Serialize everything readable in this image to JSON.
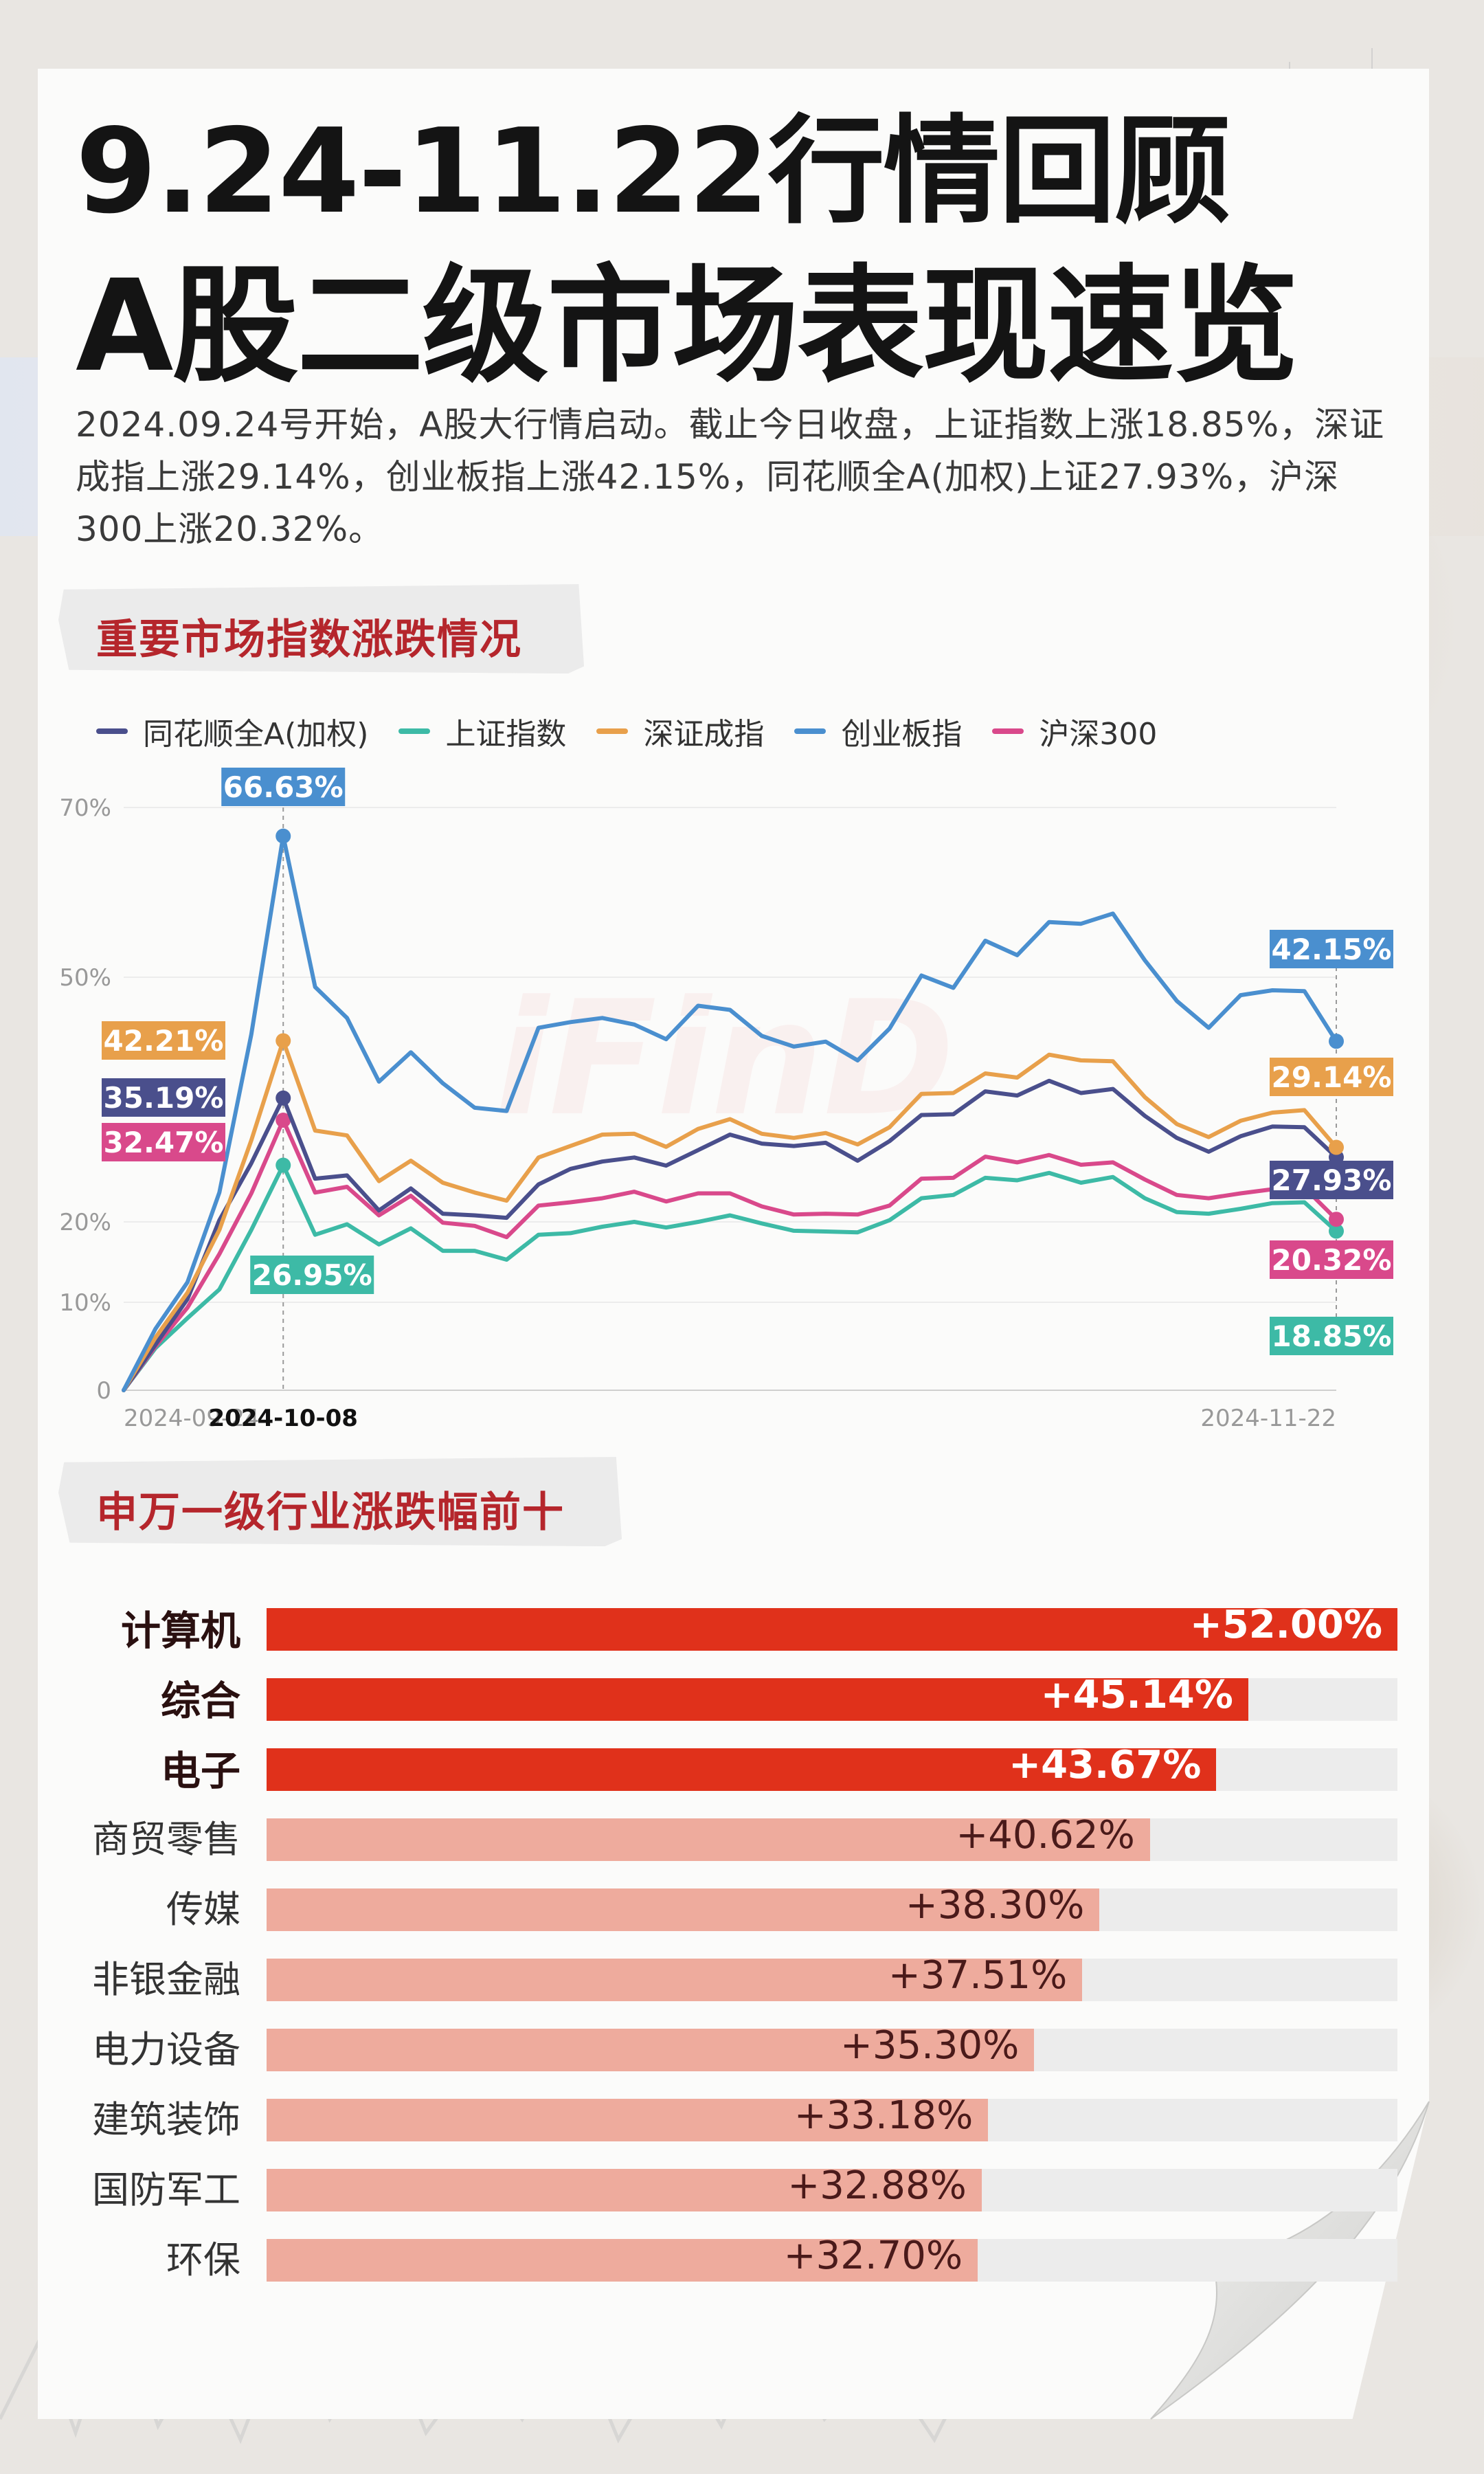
{
  "header": {
    "title_line1": "9.24-11.22行情回顾",
    "title_line2": "A股二级市场表现速览",
    "intro": "2024.09.24号开始，A股大行情启动。截止今日收盘，上证指数上涨18.85%，深证成指上涨29.14%，创业板指上涨42.15%，同花顺全A(加权)上证27.93%，沪深300上涨20.32%。"
  },
  "watermark": "iFinD",
  "section1": {
    "title": "重要市场指数涨跌情况"
  },
  "section2": {
    "title": "申万一级行业涨跌幅前十"
  },
  "colors": {
    "tonghuashun": "#4a4f8c",
    "shanghai": "#3dbaa6",
    "shenzhen": "#e8a04b",
    "chinext": "#4a8fcf",
    "hs300": "#d9498b",
    "bar_top": "#e0311b",
    "bar_other": "#eeab9d",
    "section_title": "#b5262c"
  },
  "chart_data": [
    {
      "type": "line",
      "title": "",
      "x_range": [
        "2024-09-24",
        "2024-11-22"
      ],
      "x_tick_labels": [
        "2024-09-24",
        "2024-10-08",
        "2024-11-22"
      ],
      "highlight_x": "2024-10-08",
      "y_tick_labels": [
        "0",
        "10%",
        "20%",
        "50%",
        "70%"
      ],
      "y_ticks": [
        0,
        10,
        20,
        50,
        70
      ],
      "ylim": [
        0,
        70
      ],
      "grid": true,
      "legend": "top-left",
      "series": [
        {
          "name": "同花顺全A(加权)",
          "color": "#4a4f8c",
          "peak_label": "35.19%",
          "end_label": "27.93%",
          "values": [
            0,
            5.2,
            10.4,
            20.2,
            27.2,
            35.19,
            25.3,
            25.7,
            21.4,
            24.1,
            21.0,
            20.8,
            20.5,
            24.6,
            26.5,
            27.4,
            27.9,
            26.9,
            28.8,
            30.7,
            29.6,
            29.3,
            29.7,
            27.5,
            29.9,
            33.1,
            33.2,
            36.0,
            35.5,
            37.3,
            35.8,
            36.3,
            33.0,
            30.3,
            28.6,
            30.5,
            31.7,
            31.6,
            27.93
          ]
        },
        {
          "name": "上证指数",
          "color": "#3dbaa6",
          "peak_label": "26.95%",
          "end_label": "18.85%",
          "values": [
            0,
            4.8,
            8.2,
            11.6,
            19.0,
            26.95,
            18.4,
            19.7,
            17.2,
            19.2,
            16.4,
            16.4,
            15.3,
            18.4,
            18.6,
            19.4,
            20.0,
            19.3,
            20.0,
            20.8,
            19.8,
            18.9,
            18.8,
            18.7,
            20.2,
            22.9,
            23.3,
            25.4,
            25.1,
            26.0,
            24.8,
            25.5,
            22.9,
            21.2,
            21.0,
            21.6,
            22.3,
            22.4,
            18.85
          ]
        },
        {
          "name": "深证成指",
          "color": "#e8a04b",
          "peak_label": "42.21%",
          "end_label": "29.14%",
          "values": [
            0,
            6.0,
            11.2,
            19.0,
            30.0,
            42.21,
            31.2,
            30.6,
            25.0,
            27.5,
            24.8,
            23.6,
            22.6,
            27.9,
            29.3,
            30.7,
            30.8,
            29.2,
            31.4,
            32.6,
            30.8,
            30.3,
            30.9,
            29.5,
            31.6,
            35.7,
            35.8,
            38.2,
            37.7,
            40.5,
            39.8,
            39.7,
            35.3,
            32.0,
            30.4,
            32.4,
            33.4,
            33.7,
            29.14
          ]
        },
        {
          "name": "创业板指",
          "color": "#4a8fcf",
          "peak_label": "66.63%",
          "end_label": "42.15%",
          "values": [
            0,
            7.0,
            12.5,
            23.6,
            43.0,
            66.63,
            48.8,
            45.0,
            37.2,
            40.8,
            37.0,
            34.0,
            33.6,
            43.8,
            44.5,
            45.0,
            44.2,
            42.4,
            46.5,
            46.0,
            42.8,
            41.5,
            42.1,
            39.8,
            43.7,
            50.2,
            48.7,
            54.3,
            52.6,
            56.5,
            56.3,
            57.5,
            52.0,
            47.1,
            43.8,
            47.8,
            48.4,
            48.3,
            42.15
          ]
        },
        {
          "name": "沪深300",
          "color": "#d9498b",
          "peak_label": "32.47%",
          "end_label": "20.32%",
          "values": [
            0,
            5.0,
            9.4,
            16.0,
            23.5,
            32.47,
            23.6,
            24.3,
            20.8,
            23.2,
            19.9,
            19.5,
            18.1,
            22.0,
            22.4,
            22.9,
            23.7,
            22.5,
            23.5,
            23.5,
            21.9,
            20.9,
            21.0,
            20.9,
            22.0,
            25.3,
            25.4,
            28.0,
            27.3,
            28.2,
            27.0,
            27.3,
            25.2,
            23.3,
            22.9,
            23.5,
            24.0,
            24.2,
            20.32
          ]
        }
      ]
    },
    {
      "type": "bar",
      "title": "申万一级行业涨跌幅前十",
      "orientation": "horizontal",
      "categories": [
        "计算机",
        "综合",
        "电子",
        "商贸零售",
        "传媒",
        "非银金融",
        "电力设备",
        "建筑装饰",
        "国防军工",
        "环保"
      ],
      "values": [
        52.0,
        45.14,
        43.67,
        40.62,
        38.3,
        37.51,
        35.3,
        33.18,
        32.88,
        32.7
      ],
      "value_labels": [
        "+52.00%",
        "+45.14%",
        "+43.67%",
        "+40.62%",
        "+38.30%",
        "+37.51%",
        "+35.30%",
        "+33.18%",
        "+32.88%",
        "+32.70%"
      ]
    }
  ]
}
